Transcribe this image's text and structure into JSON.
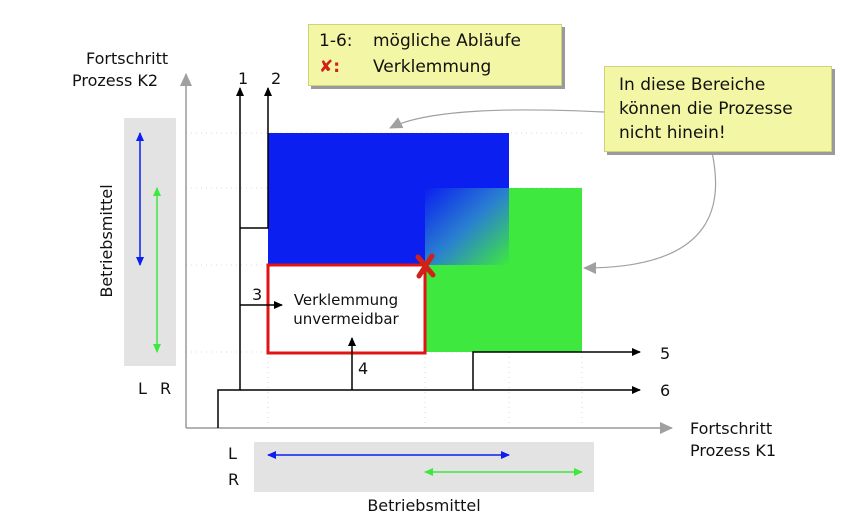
{
  "axes": {
    "y_title_line1": "Fortschritt",
    "y_title_line2": "Prozess K2",
    "x_title_line1": "Fortschritt",
    "x_title_line2": "Prozess K1"
  },
  "legend": {
    "row1_key": "1-6:",
    "row1_text": "mögliche Abläufe",
    "row2_key": "✘:",
    "row2_text": "Verklemmung"
  },
  "note": {
    "line1": "In diese Bereiche",
    "line2": "können die Prozesse",
    "line3": "nicht hinein!"
  },
  "resources": {
    "label": "Betriebsmittel",
    "left_label": "L",
    "right_label": "R",
    "bottom_label_l": "L",
    "bottom_label_r": "R"
  },
  "paths": {
    "p1": "1",
    "p2": "2",
    "p3": "3",
    "p4": "4",
    "p5": "5",
    "p6": "6"
  },
  "deadlock_region": {
    "line1": "Verklemmung",
    "line2": "unvermeidbar"
  },
  "colors": {
    "blue": "#0a1ff0",
    "green": "#3ee83e",
    "red": "#e01414",
    "gray_panel": "#e3e3e3",
    "note_yellow": "#f3f6a4"
  }
}
